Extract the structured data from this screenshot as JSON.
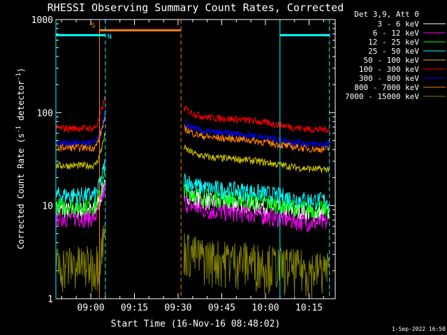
{
  "chart_data": {
    "type": "line",
    "title": "RHESSI Observing Summary Count Rates, Corrected",
    "xlabel": "Start Time (16-Nov-16 08:48:02)",
    "ylabel_main": "Corrected Count Rate (s",
    "ylabel_sup1": "-1",
    "ylabel_mid": " detector",
    "ylabel_sup2": "-1",
    "ylabel_end": ")",
    "ylog": true,
    "ylim": [
      1,
      1000
    ],
    "xlim_minutes": [
      "08:48",
      "10:24"
    ],
    "x_ticks": [
      "09:00",
      "09:15",
      "09:30",
      "09:45",
      "10:00",
      "10:15"
    ],
    "y_ticks": [
      "1",
      "10",
      "100",
      "1000"
    ],
    "legend_title": "Det 3,9, Att 0",
    "legend_position": "top-right",
    "series": [
      {
        "name": "3 - 6 keV",
        "color": "#ffffff",
        "pre": 9,
        "post": 9.5
      },
      {
        "name": "6 - 12 keV",
        "color": "#ff00ff",
        "pre": 7.5,
        "post": 7.5
      },
      {
        "name": "12 - 25 keV",
        "color": "#00ff00",
        "pre": 10,
        "post": 10.5
      },
      {
        "name": "25 - 50 keV",
        "color": "#00ffff",
        "pre": 13,
        "post": 13
      },
      {
        "name": "50 - 100 keV",
        "color": "#d4c400",
        "pre": 27,
        "post": 28
      },
      {
        "name": "100 - 300 keV",
        "color": "#ff0000",
        "pre": 68,
        "post": 75
      },
      {
        "name": "300 - 800 keV",
        "color": "#0000ff",
        "pre": 47,
        "post": 52
      },
      {
        "name": "800 - 7000 keV",
        "color": "#ff8000",
        "pre": 42,
        "post": 46
      },
      {
        "name": "7000 - 15000 keV",
        "color": "#808000",
        "pre": 2,
        "post": 2
      }
    ],
    "flags": [
      {
        "label": "S",
        "color": "#ff8000",
        "start": "09:03",
        "end": "09:31"
      },
      {
        "label": "N",
        "color": "#00ffff",
        "start": "08:48",
        "end": "09:05"
      },
      {
        "label": "",
        "color": "#00ffff",
        "start": "10:05",
        "end": "10:22"
      }
    ],
    "timestamp": "1-Sep-2022 16:50"
  }
}
